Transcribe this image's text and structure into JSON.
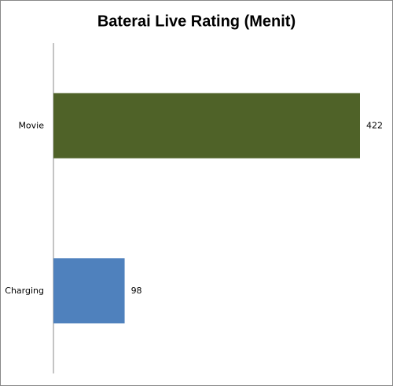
{
  "chart_data": {
    "type": "bar",
    "orientation": "horizontal",
    "title": "Baterai Live Rating (Menit)",
    "categories": [
      "Movie",
      "Charging"
    ],
    "values": [
      422,
      98
    ],
    "colors": [
      "#4f6228",
      "#4f81bd"
    ]
  }
}
